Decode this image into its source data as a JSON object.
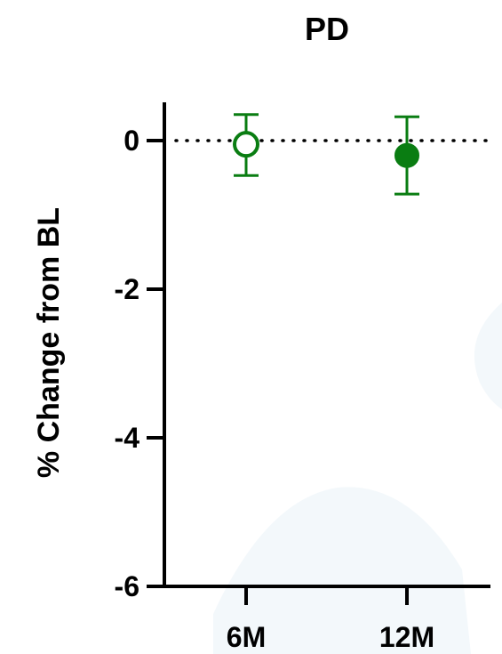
{
  "chart_data": {
    "type": "scatter",
    "title": "PD",
    "xlabel": "",
    "ylabel": "% Change from BL",
    "categories": [
      "6M",
      "12M"
    ],
    "ylim": [
      -6,
      0.5
    ],
    "yticks": [
      "0",
      "-2",
      "-4",
      "-6"
    ],
    "grid": false,
    "reference_line": {
      "y": 0,
      "style": "dotted"
    },
    "series": [
      {
        "category": "6M",
        "mean": -0.05,
        "lower": -0.47,
        "upper": 0.35,
        "marker": "open-circle"
      },
      {
        "category": "12M",
        "mean": -0.2,
        "lower": -0.72,
        "upper": 0.32,
        "marker": "filled-circle"
      }
    ],
    "colors": {
      "series": "#0a7d12",
      "axis": "#000000"
    }
  }
}
